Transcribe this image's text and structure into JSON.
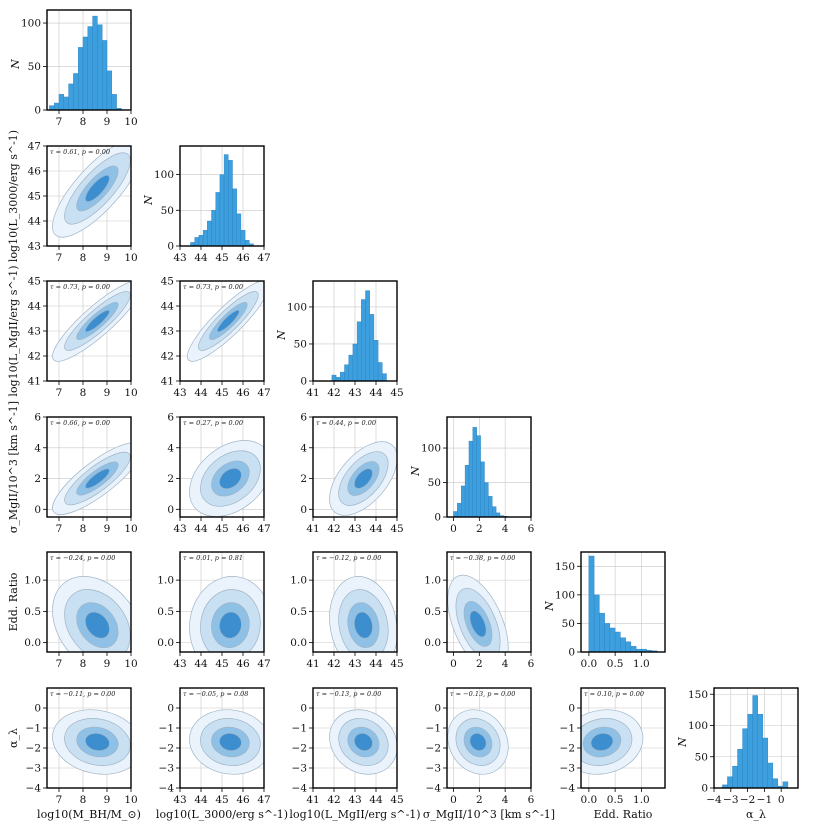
{
  "chart_data": {
    "type": "corner",
    "colors": {
      "hist": "#3d9fde",
      "hist_edge": "#2a7fbf",
      "contour_levels": [
        "#eaf3fb",
        "#c9e0f2",
        "#8fc0e6",
        "#3d8ecf"
      ],
      "contour_line": "#9fb4c6",
      "grid": "#c8c8c8",
      "frame": "#000000"
    },
    "variables": [
      {
        "label": "log10(M_BH/M_⊙)",
        "range": [
          6.5,
          10
        ],
        "ticks": [
          7,
          8,
          9,
          10
        ],
        "tick_labels": [
          "7",
          "8",
          "9",
          "10"
        ]
      },
      {
        "label": "log10(L_3000/erg s^-1)",
        "range": [
          43,
          47
        ],
        "ticks": [
          43,
          44,
          45,
          46,
          47
        ],
        "tick_labels": [
          "43",
          "44",
          "45",
          "46",
          "47"
        ]
      },
      {
        "label": "log10(L_MgII/erg s^-1)",
        "range": [
          41,
          45
        ],
        "ticks": [
          41,
          42,
          43,
          44,
          45
        ],
        "tick_labels": [
          "41",
          "42",
          "43",
          "44",
          "45"
        ]
      },
      {
        "label": "σ_MgII/10^3 [km s^-1]",
        "range": [
          -0.5,
          6
        ],
        "ticks": [
          0,
          2,
          4,
          6
        ],
        "tick_labels": [
          "0",
          "2",
          "4",
          "6"
        ]
      },
      {
        "label": "Edd. Ratio",
        "range": [
          -0.15,
          1.45
        ],
        "ticks": [
          0.0,
          0.5,
          1.0
        ],
        "tick_labels": [
          "0.0",
          "0.5",
          "1.0"
        ]
      },
      {
        "label": "α_λ",
        "range": [
          -4,
          1
        ],
        "ticks": [
          -4,
          -3,
          -2,
          -1,
          0
        ],
        "tick_labels": [
          "−4",
          "−3",
          "−2",
          "−1",
          "0"
        ]
      }
    ],
    "y_ticks": {
      "1": {
        "ticks": [
          43,
          44,
          45,
          46,
          47
        ],
        "tick_labels": [
          "43",
          "44",
          "45",
          "46",
          "47"
        ]
      },
      "2": {
        "ticks": [
          41,
          42,
          43,
          44,
          45
        ],
        "tick_labels": [
          "41",
          "42",
          "43",
          "44",
          "45"
        ]
      },
      "3": {
        "ticks": [
          0,
          2,
          4,
          6
        ],
        "tick_labels": [
          "0",
          "2",
          "4",
          "6"
        ]
      },
      "4": {
        "ticks": [
          0.0,
          0.5,
          1.0
        ],
        "tick_labels": [
          "0.0",
          "0.5",
          "1.0"
        ]
      },
      "5": {
        "ticks": [
          -4,
          -3,
          -2,
          -1,
          0
        ],
        "tick_labels": [
          "−4",
          "−3",
          "−2",
          "−1",
          "0"
        ]
      }
    },
    "y_labels": [
      "N",
      "log10(L_3000/erg s^-1)",
      "log10(L_MgII/erg s^-1)",
      "σ_MgII/10^3 [km s^-1]",
      "Edd. Ratio",
      "α_λ"
    ],
    "hist_ylabel": "N",
    "histograms": [
      {
        "edges_start": 6.6,
        "bin": 0.2,
        "counts": [
          5,
          8,
          18,
          15,
          30,
          42,
          72,
          84,
          96,
          108,
          98,
          80,
          45,
          18,
          2
        ],
        "ylim": [
          0,
          115
        ],
        "yticks": [
          0,
          50,
          100
        ]
      },
      {
        "edges_start": 43.5,
        "bin": 0.2,
        "counts": [
          5,
          12,
          15,
          22,
          35,
          50,
          75,
          100,
          128,
          120,
          80,
          45,
          22,
          8,
          3
        ],
        "ylim": [
          0,
          140
        ],
        "yticks": [
          0,
          50,
          100
        ]
      },
      {
        "edges_start": 41.9,
        "bin": 0.2,
        "counts": [
          8,
          5,
          12,
          22,
          35,
          50,
          80,
          110,
          122,
          90,
          55,
          25,
          10
        ],
        "ylim": [
          0,
          135
        ],
        "yticks": [
          0,
          50,
          100
        ]
      },
      {
        "edges_start": 0.0,
        "bin": 0.3,
        "counts": [
          8,
          20,
          45,
          75,
          110,
          130,
          118,
          80,
          50,
          30,
          15,
          6,
          2,
          1
        ],
        "ylim": [
          0,
          145
        ],
        "yticks": [
          0,
          50,
          100
        ]
      },
      {
        "edges_start": 0.0,
        "bin": 0.1,
        "counts": [
          168,
          100,
          68,
          50,
          42,
          35,
          25,
          18,
          10,
          5,
          5,
          3,
          2
        ],
        "ylim": [
          0,
          175
        ],
        "yticks": [
          0,
          50,
          100,
          150
        ]
      },
      {
        "edges_start": -3.5,
        "bin": 0.3,
        "counts": [
          5,
          18,
          35,
          62,
          95,
          118,
          148,
          118,
          80,
          40,
          15,
          3,
          10
        ],
        "ylim": [
          0,
          160
        ],
        "yticks": [
          0,
          50,
          100,
          150
        ]
      }
    ],
    "panels": [
      {
        "row": 1,
        "col": 0,
        "annotation": "τ = 0.61, p = 0.00",
        "center": [
          8.6,
          45.3
        ],
        "sx": 0.72,
        "sy": 0.75,
        "rho": 0.78
      },
      {
        "row": 2,
        "col": 0,
        "annotation": "τ = 0.73, p = 0.00",
        "center": [
          8.6,
          43.4
        ],
        "sx": 0.72,
        "sy": 0.62,
        "rho": 0.88
      },
      {
        "row": 2,
        "col": 1,
        "annotation": "τ = 0.73, p = 0.00",
        "center": [
          45.3,
          43.4
        ],
        "sx": 0.75,
        "sy": 0.62,
        "rho": 0.88
      },
      {
        "row": 3,
        "col": 0,
        "annotation": "τ = 0.66, p = 0.00",
        "center": [
          8.6,
          2.0
        ],
        "sx": 0.72,
        "sy": 0.9,
        "rho": 0.82
      },
      {
        "row": 3,
        "col": 1,
        "annotation": "τ = 0.27, p = 0.00",
        "center": [
          45.4,
          2.0
        ],
        "sx": 0.75,
        "sy": 0.95,
        "rho": 0.35
      },
      {
        "row": 3,
        "col": 2,
        "annotation": "τ = 0.44, p = 0.00",
        "center": [
          43.4,
          2.0
        ],
        "sx": 0.62,
        "sy": 0.92,
        "rho": 0.55
      },
      {
        "row": 4,
        "col": 0,
        "annotation": "τ = −0.24, p = 0.00",
        "center": [
          8.6,
          0.28
        ],
        "sx": 0.72,
        "sy": 0.3,
        "rho": -0.3
      },
      {
        "row": 4,
        "col": 1,
        "annotation": "τ = 0.01, p = 0.81",
        "center": [
          45.4,
          0.28
        ],
        "sx": 0.75,
        "sy": 0.3,
        "rho": 0.05
      },
      {
        "row": 4,
        "col": 2,
        "annotation": "τ = −0.12, p = 0.00",
        "center": [
          43.4,
          0.28
        ],
        "sx": 0.62,
        "sy": 0.3,
        "rho": -0.15
      },
      {
        "row": 4,
        "col": 3,
        "annotation": "τ = −0.38, p = 0.00",
        "center": [
          1.9,
          0.3
        ],
        "sx": 0.9,
        "sy": 0.3,
        "rho": -0.5
      },
      {
        "row": 5,
        "col": 0,
        "annotation": "τ = −0.11, p = 0.00",
        "center": [
          8.6,
          -1.7
        ],
        "sx": 0.72,
        "sy": 0.62,
        "rho": -0.15
      },
      {
        "row": 5,
        "col": 1,
        "annotation": "τ = −0.05, p = 0.08",
        "center": [
          45.4,
          -1.7
        ],
        "sx": 0.75,
        "sy": 0.62,
        "rho": -0.08
      },
      {
        "row": 5,
        "col": 2,
        "annotation": "τ = −0.13, p = 0.00",
        "center": [
          43.4,
          -1.7
        ],
        "sx": 0.62,
        "sy": 0.62,
        "rho": -0.15
      },
      {
        "row": 5,
        "col": 3,
        "annotation": "τ = −0.13, p = 0.00",
        "center": [
          1.9,
          -1.7
        ],
        "sx": 0.9,
        "sy": 0.62,
        "rho": -0.15
      },
      {
        "row": 5,
        "col": 4,
        "annotation": "τ = 0.10, p = 0.00",
        "center": [
          0.25,
          -1.7
        ],
        "sx": 0.3,
        "sy": 0.62,
        "rho": 0.12
      }
    ]
  }
}
